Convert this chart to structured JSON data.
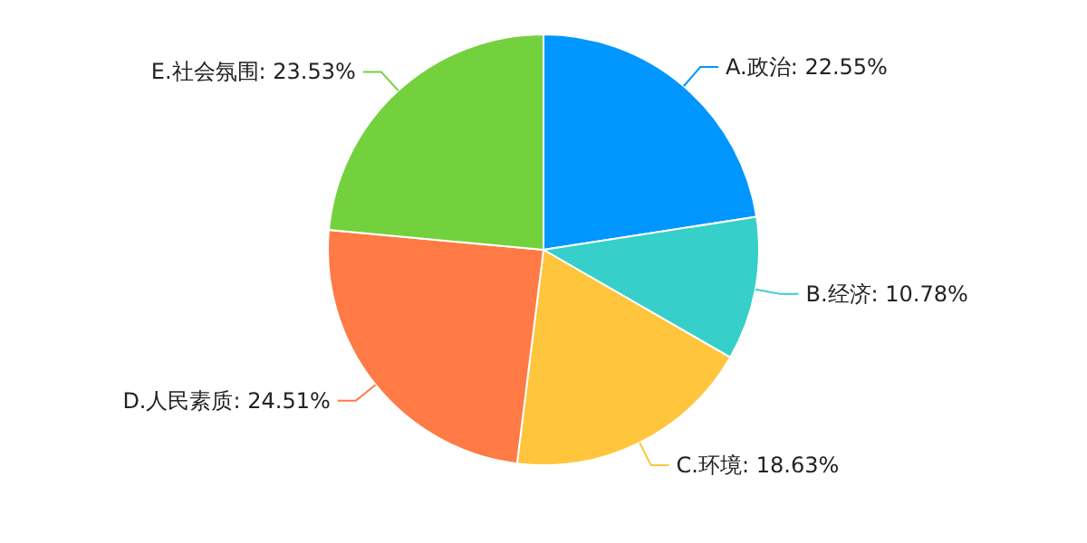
{
  "chart_data": {
    "type": "pie",
    "categories": [
      "A.政治",
      "B.经济",
      "C.环境",
      "D.人民素质",
      "E.社会氛围"
    ],
    "values": [
      22.55,
      10.78,
      18.63,
      24.51,
      23.53
    ],
    "colors": [
      "#0096ff",
      "#36cfc9",
      "#ffc53d",
      "#ff7a45",
      "#73d13d"
    ],
    "value_labels": [
      ": 22.55%",
      ": 10.78%",
      ": 18.63%",
      ": 24.51%",
      ": 23.53%"
    ]
  }
}
